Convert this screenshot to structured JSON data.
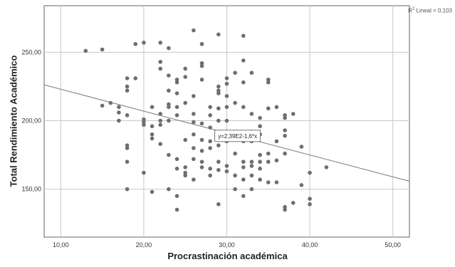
{
  "chart_data": {
    "type": "scatter",
    "xlabel": "Procrastinación académica",
    "ylabel": "Total Rendimiento Académico",
    "xlim": [
      8,
      52
    ],
    "ylim": [
      115,
      284
    ],
    "xticks": [
      10,
      20,
      30,
      40,
      50
    ],
    "yticks": [
      150,
      200,
      250
    ],
    "xtick_labels": [
      "10,00",
      "20,00",
      "30,00",
      "40,00",
      "50,00"
    ],
    "ytick_labels": [
      "150,00",
      "200,00",
      "250,00"
    ],
    "grid": true,
    "fit_line": {
      "intercept": 239,
      "slope": -1.6,
      "x_range": [
        8,
        52
      ],
      "label": "y=2,39E2-1,6*x"
    },
    "r2": {
      "prefix": "R",
      "superscript": "2",
      "suffix": " Lineal = 0,103"
    },
    "points": [
      [
        13,
        251
      ],
      [
        15,
        252
      ],
      [
        15,
        211
      ],
      [
        16,
        213
      ],
      [
        17,
        206
      ],
      [
        17,
        200
      ],
      [
        17,
        210
      ],
      [
        18,
        222
      ],
      [
        18,
        225
      ],
      [
        18,
        231
      ],
      [
        18,
        204
      ],
      [
        18,
        182
      ],
      [
        18,
        180
      ],
      [
        18,
        170
      ],
      [
        18,
        150
      ],
      [
        19,
        256
      ],
      [
        19,
        231
      ],
      [
        20,
        257
      ],
      [
        20,
        201
      ],
      [
        20,
        199
      ],
      [
        20,
        197
      ],
      [
        20,
        162
      ],
      [
        21,
        190
      ],
      [
        21,
        187
      ],
      [
        21,
        196
      ],
      [
        21,
        210
      ],
      [
        21,
        148
      ],
      [
        22,
        257
      ],
      [
        22,
        243
      ],
      [
        22,
        238
      ],
      [
        22,
        205
      ],
      [
        22,
        200
      ],
      [
        22,
        197
      ],
      [
        22,
        183
      ],
      [
        23,
        253
      ],
      [
        23,
        233
      ],
      [
        23,
        222
      ],
      [
        23,
        212
      ],
      [
        23,
        210
      ],
      [
        23,
        200
      ],
      [
        23,
        175
      ],
      [
        23,
        150
      ],
      [
        24,
        230
      ],
      [
        24,
        228
      ],
      [
        24,
        220
      ],
      [
        24,
        210
      ],
      [
        24,
        204
      ],
      [
        24,
        172
      ],
      [
        24,
        165
      ],
      [
        24,
        145
      ],
      [
        24,
        135
      ],
      [
        25,
        238
      ],
      [
        25,
        232
      ],
      [
        25,
        213
      ],
      [
        25,
        186
      ],
      [
        25,
        166
      ],
      [
        25,
        162
      ],
      [
        25,
        160
      ],
      [
        26,
        266
      ],
      [
        26,
        218
      ],
      [
        26,
        205
      ],
      [
        26,
        199
      ],
      [
        26,
        190
      ],
      [
        26,
        180
      ],
      [
        26,
        172
      ],
      [
        26,
        157
      ],
      [
        27,
        256
      ],
      [
        27,
        242
      ],
      [
        27,
        240
      ],
      [
        27,
        230
      ],
      [
        27,
        198
      ],
      [
        27,
        186
      ],
      [
        27,
        178
      ],
      [
        27,
        170
      ],
      [
        27,
        166
      ],
      [
        28,
        210
      ],
      [
        28,
        204
      ],
      [
        28,
        195
      ],
      [
        28,
        185
      ],
      [
        28,
        180
      ],
      [
        28,
        165
      ],
      [
        28,
        160
      ],
      [
        29,
        263
      ],
      [
        29,
        225
      ],
      [
        29,
        222
      ],
      [
        29,
        220
      ],
      [
        29,
        209
      ],
      [
        29,
        200
      ],
      [
        29,
        190
      ],
      [
        29,
        182
      ],
      [
        29,
        170
      ],
      [
        29,
        164
      ],
      [
        29,
        139
      ],
      [
        30,
        231
      ],
      [
        30,
        227
      ],
      [
        30,
        218
      ],
      [
        30,
        210
      ],
      [
        30,
        200
      ],
      [
        30,
        185
      ],
      [
        30,
        167
      ],
      [
        30,
        163
      ],
      [
        31,
        235
      ],
      [
        31,
        213
      ],
      [
        31,
        190
      ],
      [
        31,
        176
      ],
      [
        31,
        160
      ],
      [
        31,
        150
      ],
      [
        32,
        262
      ],
      [
        32,
        244
      ],
      [
        32,
        228
      ],
      [
        32,
        210
      ],
      [
        32,
        185
      ],
      [
        32,
        170
      ],
      [
        32,
        166
      ],
      [
        32,
        157
      ],
      [
        32,
        145
      ],
      [
        33,
        235
      ],
      [
        33,
        205
      ],
      [
        33,
        192
      ],
      [
        33,
        185
      ],
      [
        33,
        170
      ],
      [
        33,
        167
      ],
      [
        33,
        160
      ],
      [
        33,
        150
      ],
      [
        34,
        202
      ],
      [
        34,
        196
      ],
      [
        34,
        190
      ],
      [
        34,
        175
      ],
      [
        34,
        170
      ],
      [
        34,
        165
      ],
      [
        34,
        157
      ],
      [
        35,
        230
      ],
      [
        35,
        228
      ],
      [
        35,
        209
      ],
      [
        35,
        176
      ],
      [
        35,
        170
      ],
      [
        35,
        155
      ],
      [
        36,
        210
      ],
      [
        36,
        185
      ],
      [
        36,
        171
      ],
      [
        36,
        155
      ],
      [
        37,
        204
      ],
      [
        37,
        202
      ],
      [
        37,
        193
      ],
      [
        37,
        189
      ],
      [
        37,
        176
      ],
      [
        37,
        137
      ],
      [
        37,
        135
      ],
      [
        38,
        205
      ],
      [
        38,
        140
      ],
      [
        39,
        181
      ],
      [
        39,
        153
      ],
      [
        40,
        162
      ],
      [
        40,
        143
      ],
      [
        40,
        139
      ],
      [
        42,
        166
      ]
    ]
  }
}
